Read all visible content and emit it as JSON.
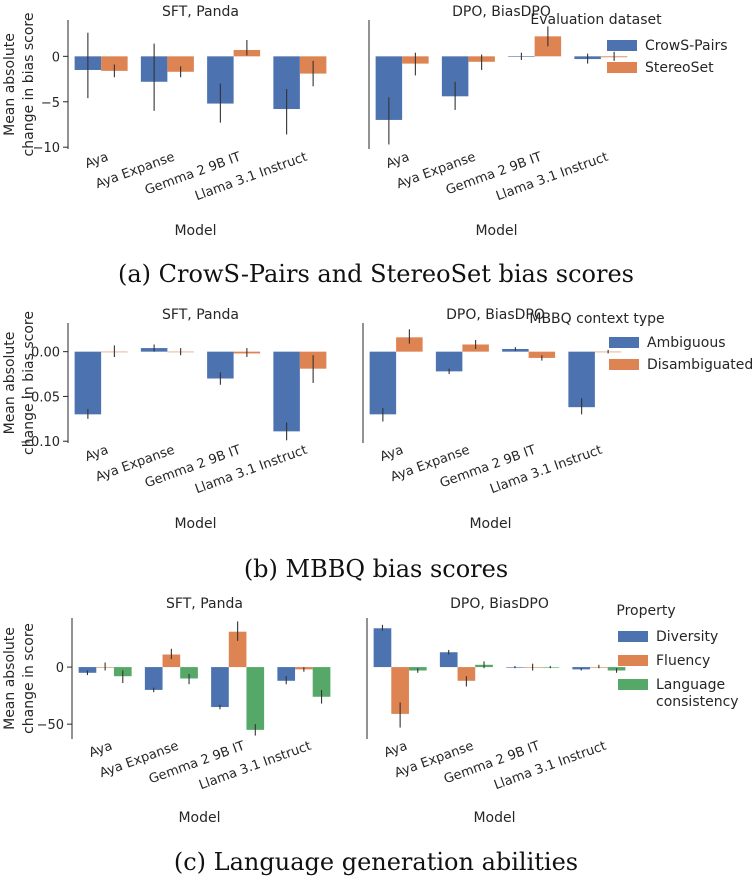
{
  "panels": [
    {
      "caption": "(a)  CrowS-Pairs and StereoSet bias scores",
      "ylabel": [
        "Mean absolute",
        "change in bias score"
      ],
      "xlabel": "Model",
      "legend_title": "Evaluation dataset"
    },
    {
      "caption": "(b)  MBBQ bias scores",
      "ylabel": [
        "Mean absolute",
        "change in bias score"
      ],
      "xlabel": "Model",
      "legend_title": "MBBQ context type"
    },
    {
      "caption": "(c)  Language generation abilities",
      "ylabel": [
        "Mean absolute",
        "change in score"
      ],
      "xlabel": "Model",
      "legend_title": "Property"
    }
  ],
  "chart_data": [
    {
      "type": "bar",
      "panel": "a",
      "subplots": [
        {
          "title": "SFT, Panda",
          "categories": [
            "Aya",
            "Aya Expanse",
            "Gemma 2 9B IT",
            "Llama 3.1 Instruct"
          ],
          "series": [
            {
              "name": "CrowS-Pairs",
              "values": [
                -1.5,
                -2.8,
                -5.2,
                -5.8
              ],
              "err_low": [
                -4.6,
                -6.0,
                -7.3,
                -8.6
              ],
              "err_high": [
                2.6,
                1.4,
                -3.0,
                -3.6
              ]
            },
            {
              "name": "StereoSet",
              "values": [
                -1.6,
                -1.7,
                0.7,
                -1.9
              ],
              "err_low": [
                -2.3,
                -2.3,
                0.1,
                -3.3
              ],
              "err_high": [
                -0.9,
                -1.1,
                1.8,
                -0.5
              ]
            }
          ],
          "ylim": [
            -10.2,
            4
          ],
          "yticks": [
            0,
            -5,
            -10
          ],
          "ytick_labels": [
            "0",
            "−5",
            "−10"
          ]
        },
        {
          "title": "DPO, BiasDPO",
          "categories": [
            "Aya",
            "Aya Expanse",
            "Gemma 2 9B IT",
            "Llama 3.1 Instruct"
          ],
          "series": [
            {
              "name": "CrowS-Pairs",
              "values": [
                -7.0,
                -4.4,
                0.0,
                -0.3
              ],
              "err_low": [
                -9.7,
                -5.9,
                -0.4,
                -0.8
              ],
              "err_high": [
                -4.5,
                -2.8,
                0.4,
                0.3
              ]
            },
            {
              "name": "StereoSet",
              "values": [
                -0.8,
                -0.6,
                2.2,
                -0.1
              ],
              "err_low": [
                -2.1,
                -1.5,
                1.1,
                -0.5
              ],
              "err_high": [
                0.4,
                0.2,
                3.3,
                0.5
              ]
            }
          ],
          "ylim": [
            -10.2,
            4
          ],
          "yticks": [
            0,
            -5,
            -10
          ],
          "ytick_labels": [
            "0",
            "−5",
            "−10"
          ]
        }
      ],
      "legend": {
        "title": "Evaluation dataset",
        "entries": [
          "CrowS-Pairs",
          "StereoSet"
        ],
        "position": "right"
      },
      "colors": [
        "#4c72b0",
        "#dd8452"
      ],
      "xlabel": "Model",
      "ylabel": "Mean absolute change in bias score"
    },
    {
      "type": "bar",
      "panel": "b",
      "subplots": [
        {
          "title": "SFT, Panda",
          "categories": [
            "Aya",
            "Aya Expanse",
            "Gemma 2 9B IT",
            "Llama 3.1 Instruct"
          ],
          "series": [
            {
              "name": "Ambiguous",
              "values": [
                -0.07,
                0.004,
                -0.03,
                -0.089
              ],
              "err_low": [
                -0.075,
                0.0,
                -0.037,
                -0.099
              ],
              "err_high": [
                -0.064,
                0.008,
                -0.023,
                -0.079
              ]
            },
            {
              "name": "Disambiguated",
              "values": [
                0.0,
                0.0,
                -0.002,
                -0.019
              ],
              "err_low": [
                -0.006,
                -0.004,
                -0.006,
                -0.035
              ],
              "err_high": [
                0.007,
                0.004,
                0.004,
                -0.004
              ]
            }
          ],
          "ylim": [
            -0.102,
            0.032
          ],
          "yticks": [
            0.0,
            -0.05,
            -0.1
          ],
          "ytick_labels": [
            "0.00",
            "−0.05",
            "−0.10"
          ]
        },
        {
          "title": "DPO, BiasDPO",
          "categories": [
            "Aya",
            "Aya Expanse",
            "Gemma 2 9B IT",
            "Llama 3.1 Instruct"
          ],
          "series": [
            {
              "name": "Ambiguous",
              "values": [
                -0.07,
                -0.022,
                0.003,
                -0.062
              ],
              "err_low": [
                -0.078,
                -0.025,
                0.001,
                -0.07
              ],
              "err_high": [
                -0.063,
                -0.019,
                0.005,
                -0.052
              ]
            },
            {
              "name": "Disambiguated",
              "values": [
                0.016,
                0.008,
                -0.007,
                0.0
              ],
              "err_low": [
                0.009,
                0.003,
                -0.01,
                -0.002
              ],
              "err_high": [
                0.025,
                0.013,
                -0.004,
                0.002
              ]
            }
          ],
          "ylim": [
            -0.102,
            0.032
          ],
          "yticks": [
            0.0,
            -0.05,
            -0.1
          ],
          "ytick_labels": [
            "0.00",
            "−0.05",
            "−0.10"
          ]
        }
      ],
      "legend": {
        "title": "MBBQ context type",
        "entries": [
          "Ambiguous",
          "Disambiguated"
        ],
        "position": "right"
      },
      "colors": [
        "#4c72b0",
        "#dd8452"
      ],
      "xlabel": "Model",
      "ylabel": "Mean absolute change in bias score"
    },
    {
      "type": "bar",
      "panel": "c",
      "subplots": [
        {
          "title": "SFT, Panda",
          "categories": [
            "Aya",
            "Aya Expanse",
            "Gemma 2 9B IT",
            "Llama 3.1 Instruct"
          ],
          "series": [
            {
              "name": "Diversity",
              "values": [
                -5,
                -20,
                -35,
                -12
              ],
              "err_low": [
                -7,
                -22,
                -37,
                -15
              ],
              "err_high": [
                -3,
                -18,
                -33,
                -8
              ]
            },
            {
              "name": "Fluency",
              "values": [
                0,
                11,
                31,
                -2
              ],
              "err_low": [
                -3,
                7,
                23,
                -4
              ],
              "err_high": [
                4,
                16,
                40,
                0
              ]
            },
            {
              "name": "Language consistency",
              "values": [
                -8,
                -10,
                -55,
                -26
              ],
              "err_low": [
                -14,
                -15,
                -60,
                -32
              ],
              "err_high": [
                -3,
                -6,
                -50,
                -20
              ]
            }
          ],
          "ylim": [
            -63,
            43
          ],
          "yticks": [
            0,
            -50
          ],
          "ytick_labels": [
            "0",
            "−50"
          ]
        },
        {
          "title": "DPO, BiasDPO",
          "categories": [
            "Aya",
            "Aya Expanse",
            "Gemma 2 9B IT",
            "Llama 3.1 Instruct"
          ],
          "series": [
            {
              "name": "Diversity",
              "values": [
                34,
                13,
                0,
                -2
              ],
              "err_low": [
                32,
                11,
                -1,
                -3
              ],
              "err_high": [
                37,
                15,
                1,
                -1
              ]
            },
            {
              "name": "Fluency",
              "values": [
                -41,
                -12,
                0,
                0
              ],
              "err_low": [
                -53,
                -17,
                -3,
                -1
              ],
              "err_high": [
                -31,
                -8,
                3,
                2
              ]
            },
            {
              "name": "Language consistency",
              "values": [
                -3,
                2,
                0,
                -3
              ],
              "err_low": [
                -5,
                -1,
                -1,
                -5
              ],
              "err_high": [
                -1,
                5,
                1,
                -1
              ]
            }
          ],
          "ylim": [
            -63,
            43
          ],
          "yticks": [
            0,
            -50
          ],
          "ytick_labels": [
            "0",
            "−50"
          ]
        }
      ],
      "legend": {
        "title": "Property",
        "entries": [
          "Diversity",
          "Fluency",
          "Language consistency"
        ],
        "position": "right"
      },
      "colors": [
        "#4c72b0",
        "#dd8452",
        "#55a868"
      ],
      "xlabel": "Model",
      "ylabel": "Mean absolute change in score"
    }
  ]
}
